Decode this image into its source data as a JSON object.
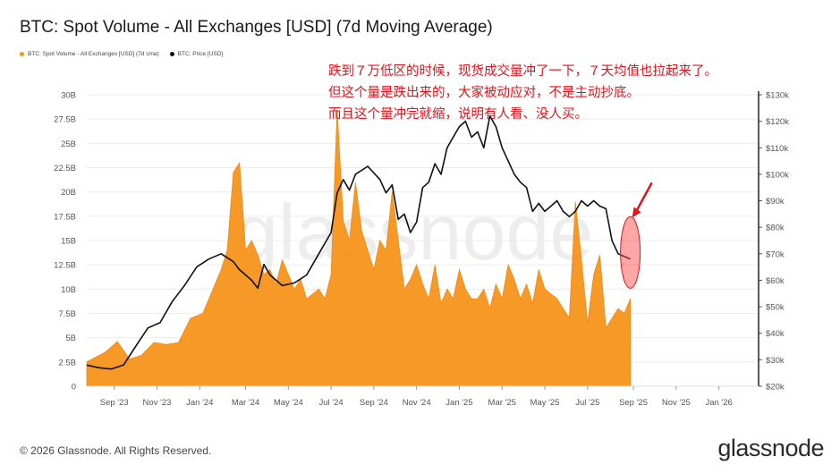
{
  "chart_data": {
    "type": "area+line",
    "title": "BTC: Spot Volume - All Exchanges [USD] (7d Moving Average)",
    "series": [
      {
        "name": "BTC: Spot Volume - All Exchanges [USD] (7d sma)",
        "kind": "area",
        "axis": "left",
        "color": "#f7931a",
        "x": [
          0,
          3,
          5,
          7,
          9,
          11,
          13,
          15,
          17,
          19,
          21,
          22,
          23,
          24,
          25,
          26,
          27,
          28,
          29,
          30,
          31,
          32,
          33,
          34,
          35,
          36,
          37,
          38,
          39,
          40,
          41,
          42,
          43,
          44,
          45,
          46,
          47,
          48,
          49,
          50,
          51,
          52,
          53,
          54,
          55,
          56,
          57,
          58,
          59,
          60,
          61,
          62,
          63,
          64,
          65,
          66,
          67,
          68,
          69,
          70,
          71,
          72,
          73,
          74,
          75,
          76,
          77,
          78,
          79,
          80,
          81,
          82,
          83,
          84,
          85,
          86,
          87,
          88,
          89
        ],
        "values": [
          2.5,
          3.5,
          4.6,
          2.8,
          3.2,
          4.5,
          4.3,
          4.5,
          7.0,
          7.5,
          10.5,
          12.0,
          14.0,
          22.0,
          23.0,
          14.0,
          15.0,
          13.5,
          11.5,
          12.0,
          10.5,
          13.0,
          11.5,
          10.0,
          11.0,
          9.0,
          9.5,
          10.0,
          9.0,
          11.5,
          28.5,
          17.0,
          15.0,
          21.0,
          16.0,
          14.0,
          12.0,
          15.0,
          14.0,
          20.0,
          15.0,
          10.0,
          11.0,
          12.5,
          10.5,
          9.0,
          12.5,
          8.5,
          10.0,
          9.0,
          12.0,
          10.0,
          9.0,
          9.0,
          10.0,
          8.0,
          10.5,
          9.0,
          12.5,
          11.0,
          9.0,
          10.5,
          8.5,
          12.0,
          10.0,
          9.5,
          9.0,
          8.0,
          7.0,
          19.0,
          13.0,
          6.5,
          11.5,
          13.5,
          6.0,
          7.0,
          8.0,
          7.5,
          9.0
        ]
      },
      {
        "name": "BTC: Price [USD]",
        "kind": "line",
        "axis": "right",
        "color": "#111111",
        "x": [
          0,
          2,
          4,
          6,
          8,
          10,
          12,
          14,
          16,
          18,
          20,
          22,
          24,
          25,
          26,
          27,
          28,
          29,
          30,
          32,
          34,
          36,
          38,
          40,
          41,
          42,
          43,
          44,
          46,
          48,
          49,
          50,
          51,
          52,
          53,
          54,
          55,
          56,
          57,
          58,
          59,
          60,
          61,
          62,
          63,
          64,
          65,
          66,
          67,
          68,
          69,
          70,
          71,
          72,
          73,
          74,
          75,
          76,
          77,
          78,
          79,
          80,
          81,
          82,
          83,
          84,
          85,
          86,
          87,
          88,
          89
        ],
        "values": [
          28,
          27,
          26.5,
          28,
          35,
          42,
          44,
          52,
          58,
          65,
          68,
          70,
          67,
          64,
          62,
          60,
          57,
          66,
          62,
          58,
          59,
          62,
          70,
          78,
          93,
          98,
          94,
          100,
          103,
          98,
          93,
          96,
          83,
          85,
          78,
          82,
          95,
          97,
          104,
          100,
          110,
          114,
          118,
          120,
          114,
          116,
          110,
          122,
          118,
          110,
          105,
          100,
          97,
          95,
          86,
          89,
          86,
          88,
          90,
          86,
          84,
          86,
          90,
          88,
          90,
          88,
          87,
          75,
          70,
          69,
          68
        ]
      }
    ],
    "x_tick_labels": [
      "Sep '23",
      "Nov '23",
      "Jan '24",
      "Mar '24",
      "May '24",
      "Jul '24",
      "Sep '24",
      "Nov '24",
      "Jan '25",
      "Mar '25",
      "May '25",
      "Jul '25",
      "Sep '25",
      "Nov '25",
      "Jan '26"
    ],
    "x_tick_positions": [
      4.5,
      11.5,
      18.5,
      26,
      33,
      40,
      47,
      54,
      61,
      68,
      75,
      82,
      89.5,
      96.5,
      103.5
    ],
    "xlim": [
      0,
      110
    ],
    "y_left": {
      "ylim": [
        0,
        30
      ],
      "ticks": [
        0,
        2.5,
        5,
        7.5,
        10,
        12.5,
        15,
        17.5,
        20,
        22.5,
        25,
        27.5,
        30
      ],
      "labels": [
        "0",
        "2.5B",
        "5B",
        "7.5B",
        "10B",
        "12.5B",
        "15B",
        "17.5B",
        "20B",
        "22.5B",
        "25B",
        "27.5B",
        "30B"
      ]
    },
    "y_right": {
      "ylim": [
        20,
        130
      ],
      "ticks": [
        20,
        30,
        40,
        50,
        60,
        70,
        80,
        90,
        100,
        110,
        120,
        130
      ],
      "labels": [
        "$20k",
        "$30k",
        "$40k",
        "$50k",
        "$60k",
        "$70k",
        "$80k",
        "$90k",
        "$100k",
        "$110k",
        "$120k",
        "$130k"
      ]
    },
    "legend": [
      "BTC: Spot Volume - All Exchanges [USD] (7d sma)",
      "BTC: Price [USD]"
    ],
    "annotation": {
      "lines": [
        "跌到７万低区的时候，现货成交量冲了一下，７天均值也拉起来了。",
        "但这个量是跌出来的，大家被动应对，不是主动抄底。",
        "而且这个量冲完就缩，说明有人看、没人买。"
      ],
      "color": "#e0141c"
    }
  },
  "watermark": "glassnode",
  "footer": "© 2026 Glassnode. All Rights Reserved.",
  "brand": "glassnode"
}
